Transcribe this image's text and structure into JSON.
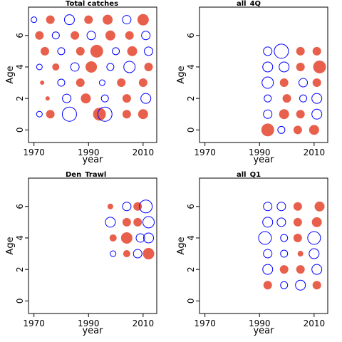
{
  "chart_data": [
    {
      "type": "scatter",
      "title": "Total catches",
      "xlabel": "year",
      "ylabel": "Age",
      "xlim": [
        1968,
        2015
      ],
      "ylim": [
        -0.8,
        7.8
      ],
      "xticks": [
        1970,
        1990,
        2010
      ],
      "yticks": [
        0,
        2,
        4,
        6
      ],
      "series": [
        {
          "values": [
            {
              "x": 1972,
              "y": 1,
              "r": 0.4,
              "s": "neg"
            },
            {
              "x": 1976,
              "y": 1,
              "r": 0.6,
              "s": "pos"
            },
            {
              "x": 1983,
              "y": 1,
              "r": 1.0,
              "s": "neg"
            },
            {
              "x": 1994,
              "y": 1,
              "r": 0.9,
              "s": "pos"
            },
            {
              "x": 1996,
              "y": 1,
              "r": 1.0,
              "s": "neg"
            },
            {
              "x": 2004,
              "y": 1,
              "r": 0.6,
              "s": "pos"
            },
            {
              "x": 2010,
              "y": 1,
              "r": 0.7,
              "s": "pos"
            },
            {
              "x": 1975,
              "y": 2,
              "r": 0.3,
              "s": "pos"
            },
            {
              "x": 1982,
              "y": 2,
              "r": 0.6,
              "s": "neg"
            },
            {
              "x": 1989,
              "y": 2,
              "r": 0.7,
              "s": "pos"
            },
            {
              "x": 1996,
              "y": 2,
              "r": 0.5,
              "s": "neg"
            },
            {
              "x": 2004,
              "y": 2,
              "r": 0.6,
              "s": "pos"
            },
            {
              "x": 2011,
              "y": 2,
              "r": 0.7,
              "s": "neg"
            },
            {
              "x": 1973,
              "y": 3,
              "r": 0.3,
              "s": "pos"
            },
            {
              "x": 1980,
              "y": 3,
              "r": 0.5,
              "s": "neg"
            },
            {
              "x": 1987,
              "y": 3,
              "r": 0.6,
              "s": "pos"
            },
            {
              "x": 1995,
              "y": 3,
              "r": 0.4,
              "s": "neg"
            },
            {
              "x": 2002,
              "y": 3,
              "r": 0.6,
              "s": "pos"
            },
            {
              "x": 2010,
              "y": 3,
              "r": 0.6,
              "s": "pos"
            },
            {
              "x": 1972,
              "y": 4,
              "r": 0.4,
              "s": "neg"
            },
            {
              "x": 1978,
              "y": 4,
              "r": 0.5,
              "s": "pos"
            },
            {
              "x": 1985,
              "y": 4,
              "r": 0.6,
              "s": "neg"
            },
            {
              "x": 1991,
              "y": 4,
              "r": 0.8,
              "s": "pos"
            },
            {
              "x": 1998,
              "y": 4,
              "r": 0.5,
              "s": "neg"
            },
            {
              "x": 2005,
              "y": 4,
              "r": 0.8,
              "s": "neg"
            },
            {
              "x": 2012,
              "y": 4,
              "r": 0.6,
              "s": "pos"
            },
            {
              "x": 1974,
              "y": 5,
              "r": 0.6,
              "s": "pos"
            },
            {
              "x": 1980,
              "y": 5,
              "r": 0.5,
              "s": "neg"
            },
            {
              "x": 1987,
              "y": 5,
              "r": 0.6,
              "s": "pos"
            },
            {
              "x": 1993,
              "y": 5,
              "r": 0.9,
              "s": "pos"
            },
            {
              "x": 2000,
              "y": 5,
              "r": 0.5,
              "s": "neg"
            },
            {
              "x": 2006,
              "y": 5,
              "r": 0.7,
              "s": "pos"
            },
            {
              "x": 2012,
              "y": 5,
              "r": 0.6,
              "s": "neg"
            },
            {
              "x": 1972,
              "y": 6,
              "r": 0.6,
              "s": "pos"
            },
            {
              "x": 1978,
              "y": 6,
              "r": 0.5,
              "s": "neg"
            },
            {
              "x": 1985,
              "y": 6,
              "r": 0.6,
              "s": "pos"
            },
            {
              "x": 1991,
              "y": 6,
              "r": 0.6,
              "s": "neg"
            },
            {
              "x": 1998,
              "y": 6,
              "r": 0.7,
              "s": "pos"
            },
            {
              "x": 2005,
              "y": 6,
              "r": 0.6,
              "s": "pos"
            },
            {
              "x": 2011,
              "y": 6,
              "r": 0.6,
              "s": "neg"
            },
            {
              "x": 1970,
              "y": 7,
              "r": 0.4,
              "s": "neg"
            },
            {
              "x": 1976,
              "y": 7,
              "r": 0.6,
              "s": "pos"
            },
            {
              "x": 1983,
              "y": 7,
              "r": 0.7,
              "s": "neg"
            },
            {
              "x": 1990,
              "y": 7,
              "r": 0.6,
              "s": "pos"
            },
            {
              "x": 1997,
              "y": 7,
              "r": 0.7,
              "s": "pos"
            },
            {
              "x": 2004,
              "y": 7,
              "r": 0.6,
              "s": "neg"
            },
            {
              "x": 2010,
              "y": 7,
              "r": 0.8,
              "s": "pos"
            }
          ]
        }
      ]
    },
    {
      "type": "scatter",
      "title": "all_4Q",
      "xlabel": "year",
      "ylabel": "Age",
      "xlim": [
        1968,
        2015
      ],
      "ylim": [
        -0.8,
        7.8
      ],
      "xticks": [
        1970,
        1990,
        2010
      ],
      "yticks": [
        0,
        2,
        4,
        6
      ],
      "series": [
        {
          "values": [
            {
              "x": 1993,
              "y": 0,
              "r": 0.9,
              "s": "pos"
            },
            {
              "x": 1998,
              "y": 0,
              "r": 0.5,
              "s": "neg"
            },
            {
              "x": 2004,
              "y": 0,
              "r": 0.6,
              "s": "pos"
            },
            {
              "x": 2010,
              "y": 0,
              "r": 0.7,
              "s": "pos"
            },
            {
              "x": 1993,
              "y": 1,
              "r": 0.6,
              "s": "neg"
            },
            {
              "x": 1999,
              "y": 1,
              "r": 0.7,
              "s": "pos"
            },
            {
              "x": 2005,
              "y": 1,
              "r": 0.6,
              "s": "pos"
            },
            {
              "x": 2011,
              "y": 1,
              "r": 0.7,
              "s": "neg"
            },
            {
              "x": 1993,
              "y": 2,
              "r": 0.5,
              "s": "neg"
            },
            {
              "x": 2000,
              "y": 2,
              "r": 0.6,
              "s": "pos"
            },
            {
              "x": 2006,
              "y": 2,
              "r": 0.5,
              "s": "neg"
            },
            {
              "x": 2011,
              "y": 2,
              "r": 0.7,
              "s": "neg"
            },
            {
              "x": 1993,
              "y": 3,
              "r": 0.8,
              "s": "neg"
            },
            {
              "x": 1999,
              "y": 3,
              "r": 0.6,
              "s": "pos"
            },
            {
              "x": 2006,
              "y": 3,
              "r": 0.6,
              "s": "neg"
            },
            {
              "x": 2011,
              "y": 3,
              "r": 0.6,
              "s": "pos"
            },
            {
              "x": 1993,
              "y": 4,
              "r": 0.7,
              "s": "neg"
            },
            {
              "x": 1999,
              "y": 4,
              "r": 0.7,
              "s": "neg"
            },
            {
              "x": 2005,
              "y": 4,
              "r": 0.6,
              "s": "pos"
            },
            {
              "x": 2012,
              "y": 4,
              "r": 0.9,
              "s": "pos"
            },
            {
              "x": 1993,
              "y": 5,
              "r": 0.6,
              "s": "neg"
            },
            {
              "x": 1998,
              "y": 5,
              "r": 1.0,
              "s": "neg"
            },
            {
              "x": 2005,
              "y": 5,
              "r": 0.6,
              "s": "pos"
            },
            {
              "x": 2011,
              "y": 5,
              "r": 0.6,
              "s": "pos"
            }
          ]
        }
      ]
    },
    {
      "type": "scatter",
      "title": "Den_Trawl",
      "xlabel": "year",
      "ylabel": "Age",
      "xlim": [
        1968,
        2015
      ],
      "ylim": [
        -0.8,
        7.8
      ],
      "xticks": [
        1970,
        1990,
        2010
      ],
      "yticks": [
        0,
        2,
        4,
        6
      ],
      "series": [
        {
          "values": [
            {
              "x": 1999,
              "y": 3,
              "r": 0.4,
              "s": "neg"
            },
            {
              "x": 2004,
              "y": 3,
              "r": 0.5,
              "s": "pos"
            },
            {
              "x": 2008,
              "y": 3,
              "r": 0.6,
              "s": "neg"
            },
            {
              "x": 2012,
              "y": 3,
              "r": 0.8,
              "s": "pos"
            },
            {
              "x": 1999,
              "y": 4,
              "r": 0.5,
              "s": "pos"
            },
            {
              "x": 2004,
              "y": 4,
              "r": 0.8,
              "s": "pos"
            },
            {
              "x": 2009,
              "y": 4,
              "r": 0.6,
              "s": "neg"
            },
            {
              "x": 2012,
              "y": 4,
              "r": 0.7,
              "s": "neg"
            },
            {
              "x": 1998,
              "y": 5,
              "r": 0.7,
              "s": "neg"
            },
            {
              "x": 2004,
              "y": 5,
              "r": 0.6,
              "s": "pos"
            },
            {
              "x": 2008,
              "y": 5,
              "r": 0.6,
              "s": "pos"
            },
            {
              "x": 2012,
              "y": 5,
              "r": 0.8,
              "s": "neg"
            },
            {
              "x": 1998,
              "y": 6,
              "r": 0.4,
              "s": "pos"
            },
            {
              "x": 2004,
              "y": 6,
              "r": 0.6,
              "s": "neg"
            },
            {
              "x": 2008,
              "y": 6,
              "r": 0.6,
              "s": "pos"
            },
            {
              "x": 2011,
              "y": 6,
              "r": 0.9,
              "s": "neg"
            }
          ]
        }
      ]
    },
    {
      "type": "scatter",
      "title": "all_Q1",
      "xlabel": "year",
      "ylabel": "Age",
      "xlim": [
        1968,
        2015
      ],
      "ylim": [
        -0.8,
        7.8
      ],
      "xticks": [
        1970,
        1990,
        2010
      ],
      "yticks": [
        0,
        2,
        4,
        6
      ],
      "series": [
        {
          "values": [
            {
              "x": 1993,
              "y": 1,
              "r": 0.6,
              "s": "pos"
            },
            {
              "x": 1999,
              "y": 1,
              "r": 0.5,
              "s": "neg"
            },
            {
              "x": 2005,
              "y": 1,
              "r": 0.7,
              "s": "neg"
            },
            {
              "x": 2011,
              "y": 1,
              "r": 0.6,
              "s": "pos"
            },
            {
              "x": 1993,
              "y": 2,
              "r": 0.7,
              "s": "neg"
            },
            {
              "x": 1999,
              "y": 2,
              "r": 0.6,
              "s": "pos"
            },
            {
              "x": 2005,
              "y": 2,
              "r": 0.6,
              "s": "pos"
            },
            {
              "x": 2011,
              "y": 2,
              "r": 0.7,
              "s": "neg"
            },
            {
              "x": 1993,
              "y": 3,
              "r": 0.6,
              "s": "neg"
            },
            {
              "x": 1999,
              "y": 3,
              "r": 0.5,
              "s": "neg"
            },
            {
              "x": 2005,
              "y": 3,
              "r": 0.4,
              "s": "pos"
            },
            {
              "x": 2010,
              "y": 3,
              "r": 0.7,
              "s": "neg"
            },
            {
              "x": 1992,
              "y": 4,
              "r": 0.9,
              "s": "neg"
            },
            {
              "x": 1999,
              "y": 4,
              "r": 0.5,
              "s": "neg"
            },
            {
              "x": 2004,
              "y": 4,
              "r": 0.6,
              "s": "pos"
            },
            {
              "x": 2010,
              "y": 4,
              "r": 0.9,
              "s": "neg"
            },
            {
              "x": 1993,
              "y": 5,
              "r": 0.7,
              "s": "neg"
            },
            {
              "x": 1998,
              "y": 5,
              "r": 0.6,
              "s": "neg"
            },
            {
              "x": 2004,
              "y": 5,
              "r": 0.6,
              "s": "pos"
            },
            {
              "x": 2011,
              "y": 5,
              "r": 0.7,
              "s": "pos"
            },
            {
              "x": 1993,
              "y": 6,
              "r": 0.6,
              "s": "neg"
            },
            {
              "x": 1998,
              "y": 6,
              "r": 0.6,
              "s": "neg"
            },
            {
              "x": 2004,
              "y": 6,
              "r": 0.6,
              "s": "pos"
            },
            {
              "x": 2012,
              "y": 6,
              "r": 0.7,
              "s": "pos"
            }
          ]
        }
      ]
    }
  ],
  "colors": {
    "positive": "#e8604c",
    "negative": "#0000ff",
    "frame": "#000000"
  }
}
